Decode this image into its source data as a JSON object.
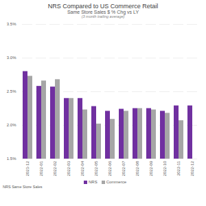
{
  "chart_data": {
    "type": "bar",
    "title": "NRS Compared to US Commerce Retail",
    "subtitle": "Same Store Sales $ % Chg vs LY",
    "annotations": [
      "(3 month trailing average)",
      "NRS Same Store Sales"
    ],
    "categories": [
      "2021-12",
      "2022-01",
      "2022-02",
      "2022-03",
      "2022-04",
      "2022-05",
      "2022-06",
      "2022-07",
      "2022-08",
      "2022-09",
      "2022-10",
      "2022-11",
      "2022-12"
    ],
    "series": [
      {
        "name": "NRS",
        "color": "#7030a0",
        "values": [
          2.8,
          2.58,
          2.57,
          2.4,
          2.4,
          2.28,
          2.21,
          2.24,
          2.25,
          2.25,
          2.21,
          2.29,
          2.29
        ]
      },
      {
        "name": "Commerce",
        "color": "#a6a6a6",
        "values": [
          2.73,
          2.66,
          2.68,
          2.4,
          2.23,
          2.02,
          2.09,
          2.21,
          2.25,
          2.23,
          2.18,
          2.07,
          null
        ]
      }
    ],
    "ylim": [
      1.5,
      3.5
    ],
    "yticks": [
      {
        "value": 1.5,
        "label": "1.5%"
      },
      {
        "value": 2.0,
        "label": "2.0%"
      },
      {
        "value": 2.5,
        "label": "2.5%"
      },
      {
        "value": 3.0,
        "label": "3.0%"
      },
      {
        "value": 3.5,
        "label": "3.5%"
      }
    ],
    "grid": true,
    "legend": "bottom"
  }
}
